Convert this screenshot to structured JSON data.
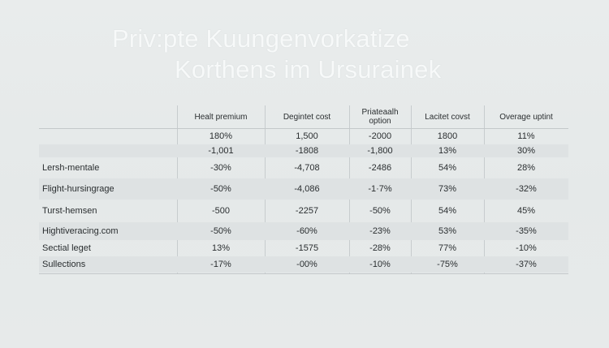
{
  "title": {
    "line1": "Priv:pte Kuungenvorkatize",
    "line2": "Korthens im Ursurainek"
  },
  "table": {
    "headers": [
      "",
      "Healt premium",
      "Degintet cost",
      "Priateaalh option",
      "Lacitet covst",
      "Overage uptint"
    ],
    "rows": [
      [
        "",
        "180%",
        "1,500",
        "-2000",
        "1800",
        "11%"
      ],
      [
        "",
        "-1,001",
        "-1808",
        "-1,800",
        "13%",
        "30%"
      ],
      [
        "Lersh-mentale",
        "-30%",
        "-4,708",
        "-2486",
        "54%",
        "28%"
      ],
      [
        "Flight-hursingrage",
        "-50%",
        "-4,086",
        "-1·7%",
        "73%",
        "-32%"
      ],
      [
        "Turst-hemsen",
        "-500",
        "-2257",
        "-50%",
        "54%",
        "45%"
      ],
      [
        "Hightiveracing.com",
        "-50%",
        "-60%",
        "-23%",
        "53%",
        "-35%"
      ],
      [
        "Sectial leget",
        "13%",
        "-1575",
        "-28%",
        "77%",
        "-10%"
      ],
      [
        "Sullections",
        "-17%",
        "-00%",
        "-10%",
        "-75%",
        "-37%"
      ]
    ]
  }
}
